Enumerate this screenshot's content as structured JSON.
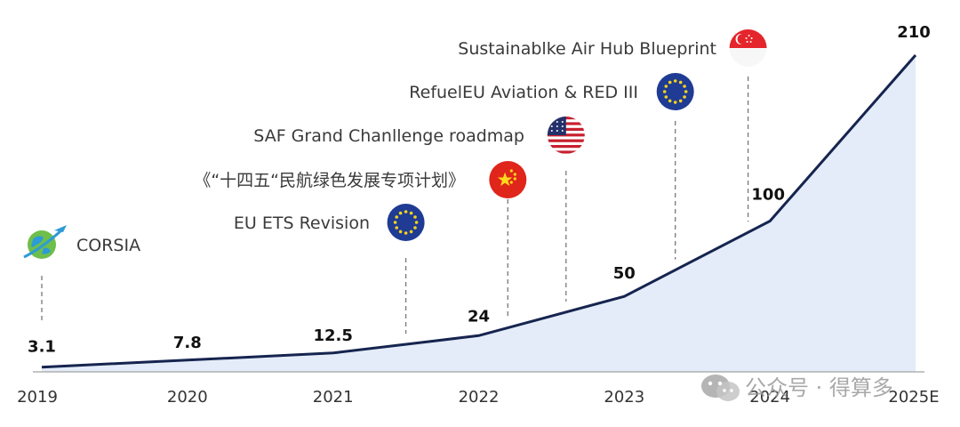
{
  "chart_data": {
    "type": "area",
    "categories": [
      "2019",
      "2020",
      "2021",
      "2022",
      "2023",
      "2024",
      "2025E"
    ],
    "values": [
      3.1,
      7.8,
      12.5,
      24,
      50,
      100,
      210
    ],
    "value_labels": [
      "3.1",
      "7.8",
      "12.5",
      "24",
      "50",
      "100",
      "210"
    ],
    "ylim": [
      0,
      210
    ],
    "grid": false,
    "colors": {
      "line": "#16244f",
      "fill": "#e3ecf8",
      "leader": "#777777",
      "axis": "#b0b0b0"
    },
    "annotations": [
      {
        "label": "CORSIA",
        "icon": "globe-plane-icon",
        "x": 2019.0
      },
      {
        "label": "EU ETS Revision",
        "icon": "eu-flag-icon",
        "x": 2021.5
      },
      {
        "label": "《“十四五“民航绿色发展专项计划》",
        "icon": "china-flag-icon",
        "x": 2022.2
      },
      {
        "label": "SAF Grand Chanllenge roadmap",
        "icon": "us-flag-icon",
        "x": 2022.6
      },
      {
        "label": "RefuelEU Aviation & RED III",
        "icon": "eu-flag-icon",
        "x": 2023.35
      },
      {
        "label": "Sustainablke Air Hub Blueprint",
        "icon": "singapore-flag-icon",
        "x": 2023.85
      }
    ]
  },
  "watermark": {
    "text": "公众号 · 得算多",
    "icon": "wechat-icon"
  }
}
